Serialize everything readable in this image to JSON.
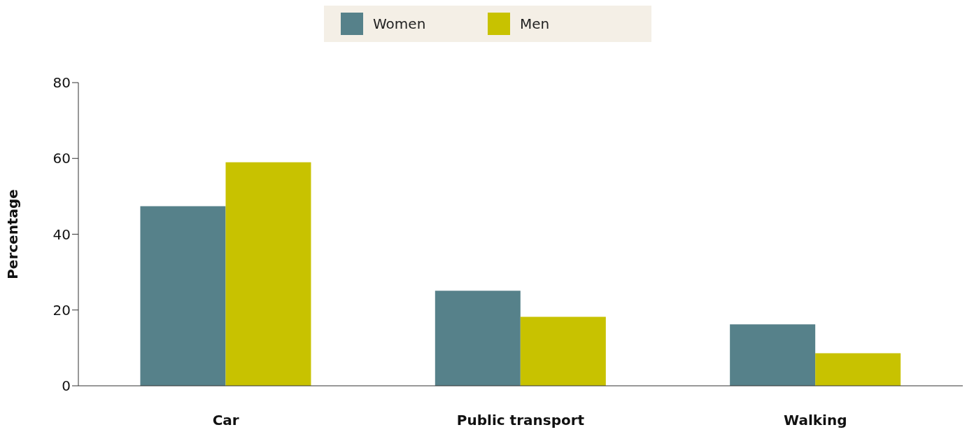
{
  "chart_data": {
    "type": "bar",
    "ylabel": "Percentage",
    "categories": [
      "Car",
      "Public transport",
      "Walking"
    ],
    "series": [
      {
        "name": "Women",
        "color": "#56818a",
        "values": [
          47.4,
          25.1,
          16.2
        ]
      },
      {
        "name": "Men",
        "color": "#c8c200",
        "values": [
          59,
          18.2,
          8.6
        ]
      }
    ],
    "ylim": [
      0,
      80
    ],
    "yticks": [
      0,
      20,
      40,
      60,
      80
    ],
    "grid": false,
    "legend": "top"
  }
}
